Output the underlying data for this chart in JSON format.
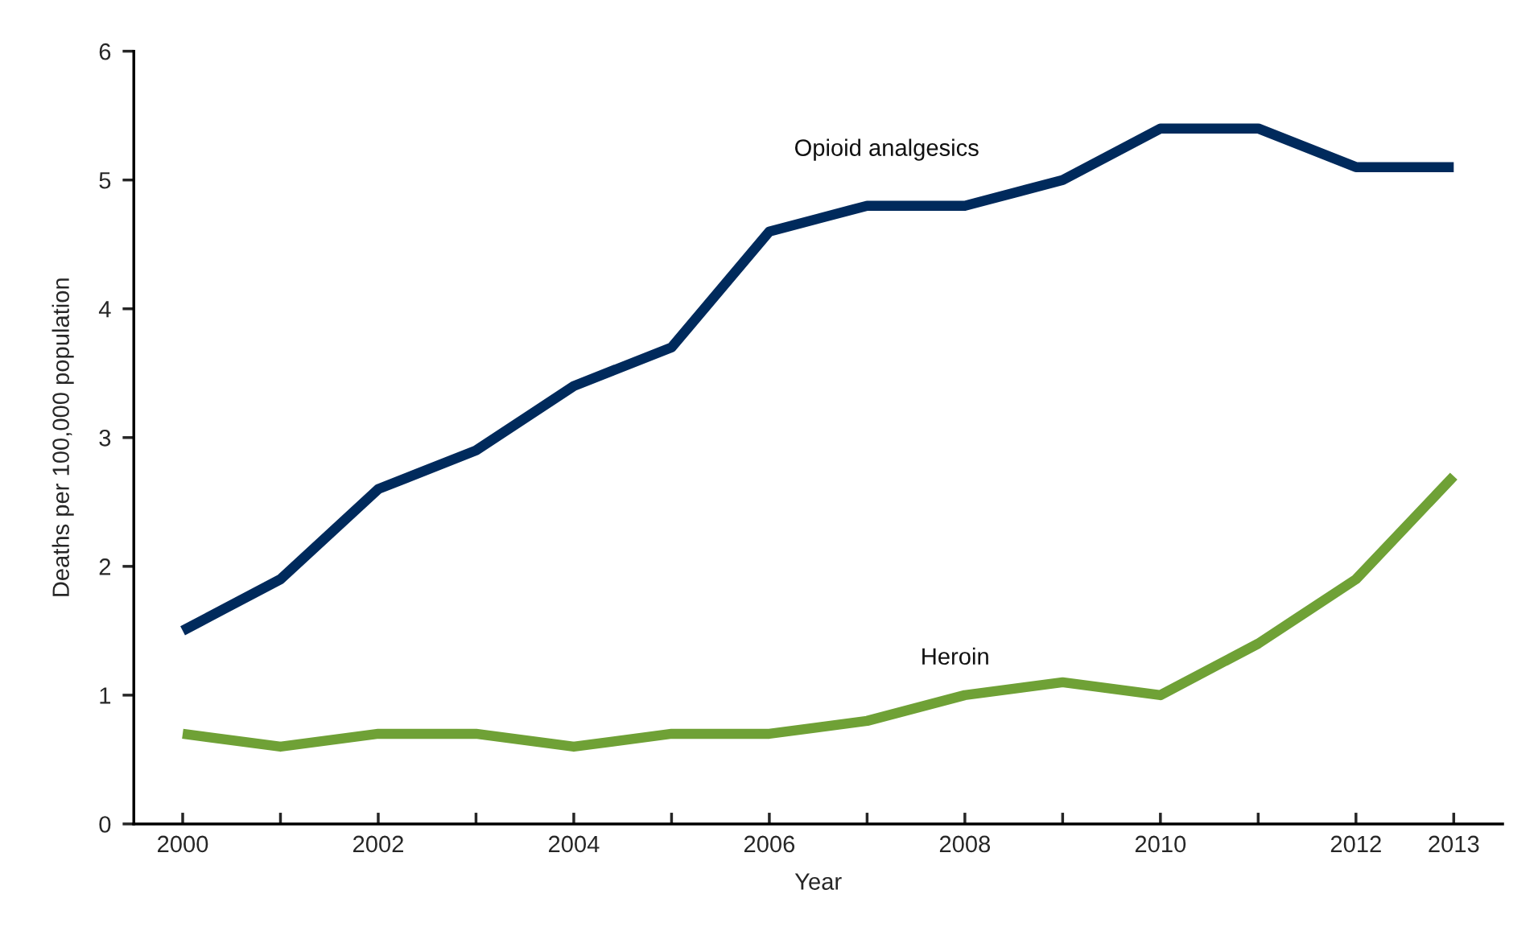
{
  "chart_data": {
    "type": "line",
    "xlabel": "Year",
    "ylabel": "Deaths per 100,000 population",
    "x": [
      2000,
      2001,
      2002,
      2003,
      2004,
      2005,
      2006,
      2007,
      2008,
      2009,
      2010,
      2011,
      2012,
      2013
    ],
    "series": [
      {
        "name": "Opioid analgesics",
        "color": "#002a5c",
        "values": [
          1.5,
          1.9,
          2.6,
          2.9,
          3.4,
          3.7,
          4.6,
          4.8,
          4.8,
          5.0,
          5.4,
          5.4,
          5.1,
          5.1
        ]
      },
      {
        "name": "Heroin",
        "color": "#6fa136",
        "values": [
          0.7,
          0.6,
          0.7,
          0.7,
          0.6,
          0.7,
          0.7,
          0.8,
          1.0,
          1.1,
          1.0,
          1.4,
          1.9,
          2.7
        ]
      }
    ],
    "xlim": [
      1999.5,
      2013.5
    ],
    "ylim": [
      0,
      6
    ],
    "xticks": [
      2000,
      {
        "value": 2001,
        "label": null
      },
      2002,
      {
        "value": 2003,
        "label": null
      },
      2004,
      {
        "value": 2005,
        "label": null
      },
      2006,
      {
        "value": 2007,
        "label": null
      },
      2008,
      {
        "value": 2009,
        "label": null
      },
      2010,
      {
        "value": 2011,
        "label": null
      },
      2012,
      2013
    ],
    "yticks": [
      0,
      1,
      2,
      3,
      4,
      5,
      6
    ],
    "grid": false,
    "legend": false,
    "marker": "none",
    "line_style": "solid"
  }
}
